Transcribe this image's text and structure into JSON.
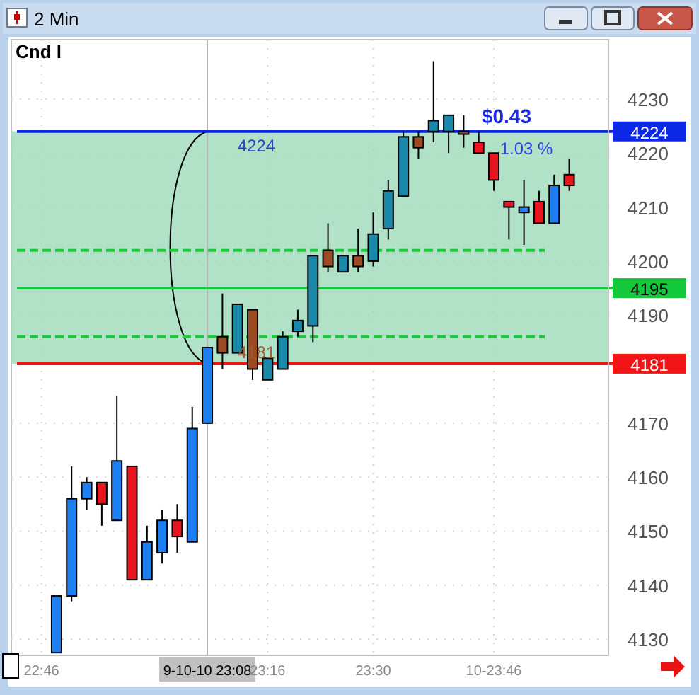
{
  "chart_data": {
    "type": "candlestick",
    "title": "2 Min",
    "annotations": [
      "Cnd l",
      "$0.43",
      "1.03 %",
      {
        "text": "4224",
        "x": 23.2,
        "y": 4224
      },
      {
        "text": "4181",
        "x": 23.2,
        "y": 4181
      }
    ],
    "x": [
      22.8,
      22.8333,
      22.8667,
      22.9,
      22.9333,
      22.9667,
      23,
      23.0333,
      23.0667,
      23.1,
      23.1333,
      23.1667,
      23.2,
      23.2333,
      23.2667,
      23.3,
      23.3333,
      23.3667,
      23.4,
      23.4333,
      23.4667,
      23.5,
      23.5333,
      23.5667,
      23.6,
      23.6333,
      23.6667,
      23.7,
      23.7333,
      23.7667,
      23.8,
      23.8333,
      23.8667,
      23.9,
      23.9333
    ],
    "ohlc": [
      [
        4127.5,
        4138,
        4127.5,
        4138
      ],
      [
        4138,
        4162,
        4137,
        4156
      ],
      [
        4156,
        4160,
        4154,
        4159
      ],
      [
        4159,
        4159,
        4151,
        4155
      ],
      [
        4152,
        4175,
        4152,
        4163
      ],
      [
        4162,
        4162,
        4141,
        4141
      ],
      [
        4141,
        4151,
        4141,
        4148
      ],
      [
        4146,
        4154,
        4144,
        4152
      ],
      [
        4152,
        4155,
        4146,
        4149
      ],
      [
        4148,
        4173,
        4148,
        4169
      ],
      [
        4170,
        4184,
        4170,
        4184
      ],
      [
        4186,
        4194,
        4180,
        4183
      ],
      [
        4183,
        4192,
        4183,
        4192
      ],
      [
        4191,
        4191,
        4178,
        4180
      ],
      [
        4178,
        4182,
        4178,
        4182
      ],
      [
        4180,
        4187,
        4180,
        4186
      ],
      [
        4187,
        4191,
        4186,
        4189
      ],
      [
        4188,
        4201,
        4185,
        4201
      ],
      [
        4202,
        4207,
        4198,
        4199
      ],
      [
        4198,
        4201,
        4198,
        4201
      ],
      [
        4201,
        4206,
        4198,
        4199
      ],
      [
        4200,
        4209,
        4199,
        4205
      ],
      [
        4206,
        4215,
        4204,
        4213
      ],
      [
        4212,
        4224,
        4212,
        4223
      ],
      [
        4223,
        4224,
        4219,
        4221
      ],
      [
        4224,
        4237,
        4222,
        4226
      ],
      [
        4224,
        4227,
        4220,
        4227
      ],
      [
        4224,
        4227,
        4221,
        4223.5
      ],
      [
        4222,
        4224,
        4220,
        4220
      ],
      [
        4220,
        4220,
        4213,
        4215
      ],
      [
        4211,
        4211,
        4204,
        4210
      ],
      [
        4209,
        4215,
        4203,
        4210
      ],
      [
        4211,
        4213,
        4207,
        4207
      ],
      [
        4207,
        4216,
        4207,
        4214
      ],
      [
        4216,
        4219,
        4213,
        4214
      ]
    ],
    "colors": [
      "#1e7ff0",
      "#1e7ff0",
      "#1e7ff0",
      "#e8141e",
      "#1e7ff0",
      "#e8141e",
      "#1e7ff0",
      "#1e7ff0",
      "#e8141e",
      "#1e7ff0",
      "#1e7ff0",
      "#9c4a22",
      "#1a88a8",
      "#9c4a22",
      "#1a88a8",
      "#1a88a8",
      "#1a88a8",
      "#1a88a8",
      "#9c4a22",
      "#1a88a8",
      "#9c4a22",
      "#1a88a8",
      "#1a88a8",
      "#1a88a8",
      "#9c4a22",
      "#1a88a8",
      "#1a88a8",
      "#b0402a",
      "#e8141e",
      "#e8141e",
      "#e8141e",
      "#1e7ff0",
      "#e8141e",
      "#1e7ff0",
      "#e8141e"
    ],
    "xlim": [
      22.7,
      24.02
    ],
    "xticks": [
      {
        "value": 22.7667,
        "label": "22:46"
      },
      {
        "value": 23.1333,
        "label": "9-10-10 23:08"
      },
      {
        "value": 23.2667,
        "label": "23:16"
      },
      {
        "value": 23.5,
        "label": "23:30"
      },
      {
        "value": 23.7667,
        "label": "10-23:46"
      }
    ],
    "ylim": [
      4127,
      4241
    ],
    "yticks": [
      4130,
      4140,
      4150,
      4160,
      4170,
      4190,
      4200,
      4210,
      4220,
      4230
    ],
    "grid": true,
    "bands": [
      {
        "axis": "y",
        "from": 4181,
        "to": 4224,
        "color": "#9dd9b8"
      }
    ],
    "ref_lines": [
      {
        "axis": "x",
        "value": 23.1333,
        "color": "#b4b4b4",
        "line_style": "solid"
      },
      {
        "axis": "y",
        "value": 4224,
        "label": "4224",
        "color": "#0a28e6",
        "line_style": "solid"
      },
      {
        "axis": "y",
        "value": 4202,
        "color": "#1ec83c",
        "line_style": "dashed"
      },
      {
        "axis": "y",
        "value": 4195,
        "label": "4195",
        "color": "#14c83c",
        "line_style": "solid"
      },
      {
        "axis": "y",
        "value": 4186,
        "color": "#1ec83c",
        "line_style": "dashed"
      },
      {
        "axis": "y",
        "value": 4181,
        "label": "4181",
        "color": "#f01414",
        "line_style": "solid"
      }
    ]
  }
}
